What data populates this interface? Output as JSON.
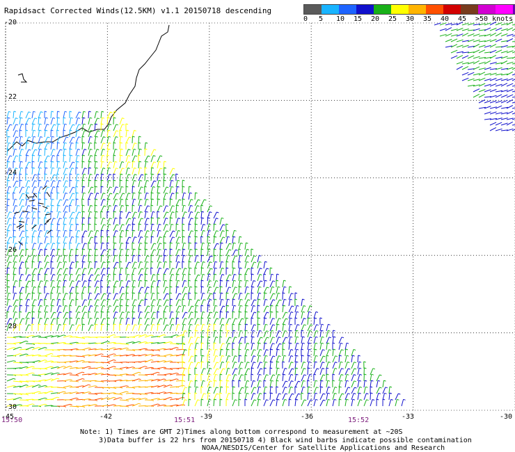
{
  "title": "Rapidsact Corrected Winds(12.5KM) v1.1 20150718 descending",
  "legend": {
    "colors": [
      "#5a5a5a",
      "#19b4ff",
      "#1e64ff",
      "#1010cc",
      "#18b018",
      "#ffff00",
      "#ffb400",
      "#ff5000",
      "#d20000",
      "#783c1e",
      "#d200d2",
      "#ff00ff",
      "#6e00b4"
    ],
    "ticks": [
      "0",
      "5",
      "10",
      "15",
      "20",
      "25",
      "30",
      "35",
      "40",
      "45",
      ">50 knots"
    ],
    "unit": "knots"
  },
  "axes": {
    "lat_labels": [
      "-20",
      "-22",
      "-24",
      "-26",
      "-28",
      "-30"
    ],
    "lon_labels": [
      "-45",
      "-42",
      "-39",
      "-36",
      "-33",
      "-30"
    ],
    "lat_range": [
      -30,
      -20
    ],
    "lon_range": [
      -45,
      -30
    ]
  },
  "times": [
    "15:50",
    "15:51",
    "15:52"
  ],
  "notes": [
    "Note: 1) Times are GMT 2)Times along bottom correspond to measurement at ~20S",
    "3)Data buffer is 22 hrs from 20150718 4) Black wind barbs indicate possible contamination",
    "NOAA/NESDIS/Center for Satellite Applications and Research"
  ]
}
